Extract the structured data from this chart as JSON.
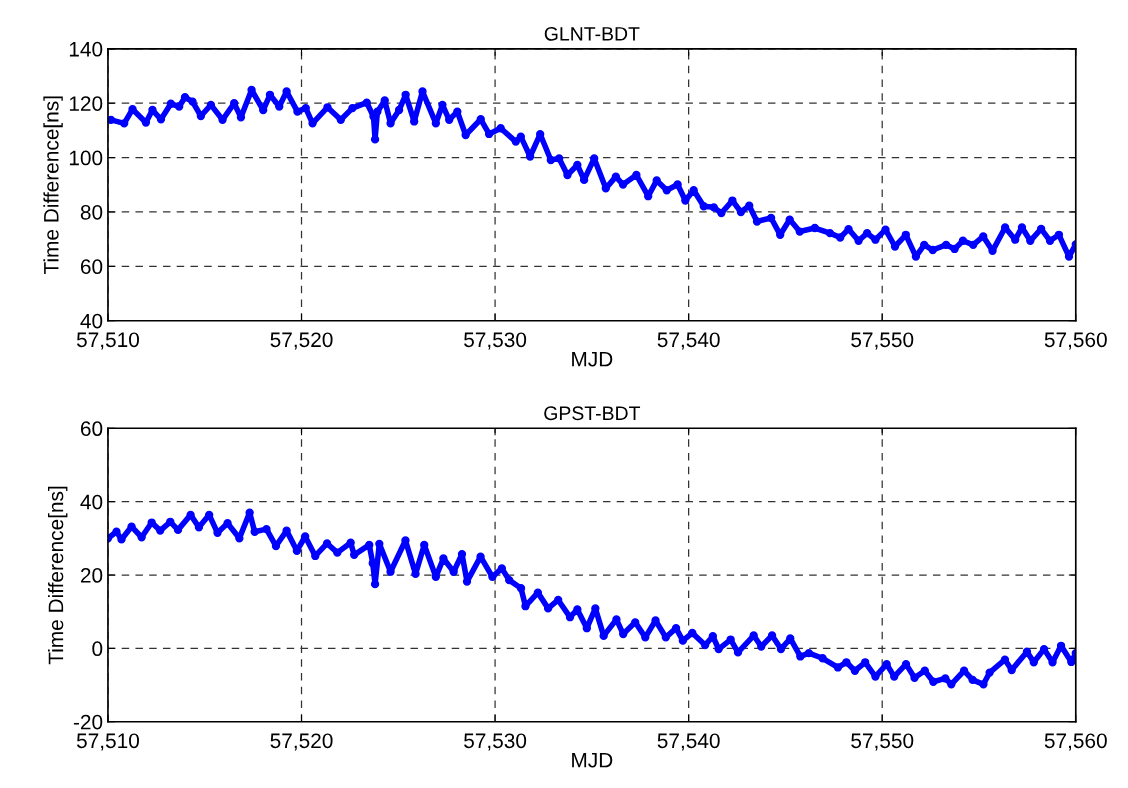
{
  "chart_data": [
    {
      "type": "line",
      "title": "GLNT-BDT",
      "xlabel": "MJD",
      "ylabel": "Time Difference[ns]",
      "grid": true,
      "marker": "circle",
      "line_style": "solid",
      "xlim": [
        57510,
        57560
      ],
      "xticks": [
        {
          "value": 57510,
          "label": "57,510"
        },
        {
          "value": 57520,
          "label": "57,520"
        },
        {
          "value": 57530,
          "label": "57,530"
        },
        {
          "value": 57540,
          "label": "57,540"
        },
        {
          "value": 57550,
          "label": "57,550"
        },
        {
          "value": 57560,
          "label": "57,560"
        }
      ],
      "ylim": [
        40,
        140
      ],
      "yticks": [
        40,
        60,
        80,
        100,
        120,
        140
      ],
      "series": [
        {
          "color": "#0000ff",
          "x": [
            57510.15,
            57510.84,
            57511.27,
            57511.96,
            57512.3,
            57512.74,
            57513.25,
            57513.68,
            57513.98,
            57514.37,
            57514.8,
            57515.32,
            57515.92,
            57516.52,
            57516.87,
            57517.42,
            57518.02,
            57518.37,
            57518.85,
            57519.23,
            57519.79,
            57520.22,
            57520.57,
            57521.34,
            57522.03,
            57522.63,
            57523.37,
            57523.72,
            57523.8,
            57523.92,
            57524.3,
            57524.6,
            57525.04,
            57525.38,
            57525.82,
            57526.25,
            57526.94,
            57527.28,
            57527.63,
            57528.05,
            57528.48,
            57529.26,
            57529.69,
            57530.29,
            57531.07,
            57531.33,
            57531.81,
            57532.33,
            57532.88,
            57533.31,
            57533.74,
            57534.25,
            57534.6,
            57535.12,
            57535.72,
            57536.24,
            57536.61,
            57537.3,
            57537.91,
            57538.35,
            57538.87,
            57539.43,
            57539.83,
            57540.26,
            57540.78,
            57541.3,
            57541.69,
            57542.26,
            57542.7,
            57543.13,
            57543.53,
            57544.26,
            57544.73,
            57545.22,
            57545.74,
            57546.52,
            57547.3,
            57547.83,
            57548.26,
            57548.78,
            57549.22,
            57549.65,
            57550.17,
            57550.66,
            57551.22,
            57551.74,
            57552.17,
            57552.61,
            57553.3,
            57553.74,
            57554.17,
            57554.7,
            57555.22,
            57555.7,
            57556.35,
            57556.87,
            57557.22,
            57557.65,
            57558.21,
            57558.67,
            57559.13,
            57559.65,
            57560
          ],
          "values": [
            113.9,
            112.6,
            117.8,
            112.9,
            117.5,
            114.1,
            119.8,
            118.8,
            122.2,
            120.6,
            115.3,
            119.4,
            113.9,
            120,
            114.8,
            124.9,
            117.5,
            123.1,
            118.8,
            124.3,
            116.9,
            118.2,
            112.6,
            118.5,
            113.9,
            118.2,
            120.2,
            115.1,
            106.7,
            116.9,
            121,
            112.6,
            117.5,
            123.1,
            113.3,
            124.3,
            112.6,
            119.4,
            113.9,
            116.9,
            108.3,
            114.1,
            108.7,
            110.8,
            105.9,
            107.7,
            100.4,
            108.6,
            99.1,
            99.7,
            93.6,
            97.3,
            91.8,
            99.7,
            88.7,
            93,
            90.1,
            93.6,
            85.8,
            91.6,
            88,
            90.1,
            84.2,
            88,
            82.1,
            81.7,
            79.6,
            84.2,
            80,
            82.3,
            76.5,
            77.8,
            71.6,
            77.2,
            72.8,
            74.1,
            72.2,
            70.6,
            73.7,
            69.4,
            72.2,
            69.8,
            73.5,
            67.3,
            71.6,
            63.6,
            67.9,
            66,
            67.9,
            66.4,
            69.4,
            67.9,
            71,
            65.7,
            74.3,
            69.8,
            74.3,
            69.4,
            73.8,
            69.4,
            71.6,
            63.6,
            68.1
          ]
        }
      ]
    },
    {
      "type": "line",
      "title": "GPST-BDT",
      "xlabel": "MJD",
      "ylabel": "Time Difference[ns]",
      "grid": true,
      "marker": "circle",
      "line_style": "solid",
      "xlim": [
        57510,
        57560
      ],
      "xticks": [
        {
          "value": 57510,
          "label": "57,510"
        },
        {
          "value": 57520,
          "label": "57,520"
        },
        {
          "value": 57530,
          "label": "57,530"
        },
        {
          "value": 57540,
          "label": "57,540"
        },
        {
          "value": 57550,
          "label": "57,550"
        },
        {
          "value": 57560,
          "label": "57,560"
        }
      ],
      "ylim": [
        -20,
        60
      ],
      "yticks": [
        {
          "value": -20,
          "label": "-20"
        },
        0,
        20,
        40,
        60
      ],
      "series": [
        {
          "color": "#0000ff",
          "x": [
            57510,
            57510.44,
            57510.7,
            57511.22,
            57511.74,
            57512.26,
            57512.7,
            57513.22,
            57513.62,
            57514.27,
            57514.7,
            57515.23,
            57515.66,
            57516.18,
            57516.79,
            57517.32,
            57517.58,
            57518.19,
            57518.68,
            57519.23,
            57519.76,
            57520.19,
            57520.71,
            57521.32,
            57521.85,
            57522.54,
            57522.72,
            57523.5,
            57523.68,
            57523.8,
            57524.02,
            57524.6,
            57525.37,
            57525.89,
            57526.34,
            57526.94,
            57527.33,
            57527.86,
            57528.29,
            57528.55,
            57529.25,
            57529.86,
            57530.35,
            57530.73,
            57531.34,
            57531.57,
            57532.21,
            57532.74,
            57533.26,
            57533.87,
            57534.25,
            57534.74,
            57535.18,
            57535.61,
            57536.27,
            57536.62,
            57537.24,
            57537.76,
            57538.29,
            57538.82,
            57539.35,
            57539.7,
            57540.19,
            57540.85,
            57541.25,
            57541.55,
            57542.17,
            57542.55,
            57543.36,
            57543.75,
            57544.31,
            57544.77,
            57545.25,
            57545.77,
            57546.21,
            57546.92,
            57547.71,
            57548.15,
            57548.59,
            57549.12,
            57549.65,
            57550.23,
            57550.62,
            57551.23,
            57551.67,
            57552.2,
            57552.64,
            57553.26,
            57553.57,
            57554.23,
            57554.67,
            57555.23,
            57555.55,
            57556.34,
            57556.69,
            57557.48,
            57557.83,
            57558.36,
            57558.8,
            57559.24,
            57559.77,
            57560
          ],
          "values": [
            30,
            31.8,
            29.7,
            33.2,
            30.3,
            34.3,
            32.1,
            34.5,
            32.3,
            36.4,
            33,
            36.4,
            31.5,
            34.1,
            30,
            37,
            31.8,
            32.5,
            27.9,
            32.1,
            26.6,
            30.5,
            25.2,
            28.6,
            26.1,
            28.8,
            25.5,
            28.2,
            23.2,
            17.5,
            28.5,
            20.9,
            29.4,
            20.3,
            28.2,
            19.5,
            24.5,
            20.9,
            25.7,
            18.2,
            25,
            19.5,
            21.8,
            18.6,
            16.4,
            11.5,
            15.2,
            10.9,
            13.2,
            8.5,
            10.6,
            5.5,
            10.9,
            3.4,
            7.9,
            3.9,
            7.1,
            3,
            7.6,
            3,
            5.5,
            2.1,
            4.2,
            0.9,
            3.3,
            -0.2,
            2.4,
            -1.1,
            3.5,
            0.5,
            3.5,
            -0.2,
            2.7,
            -2.2,
            -1.3,
            -2.7,
            -5.2,
            -3.8,
            -6.1,
            -3.8,
            -7.7,
            -4.3,
            -7.7,
            -4.3,
            -8,
            -6.1,
            -9.1,
            -8.2,
            -9.8,
            -6.1,
            -8.6,
            -9.8,
            -6.6,
            -3.1,
            -5.9,
            -0.9,
            -3.8,
            -0.2,
            -3.8,
            0.7,
            -3.7,
            -1.3
          ]
        }
      ]
    }
  ]
}
